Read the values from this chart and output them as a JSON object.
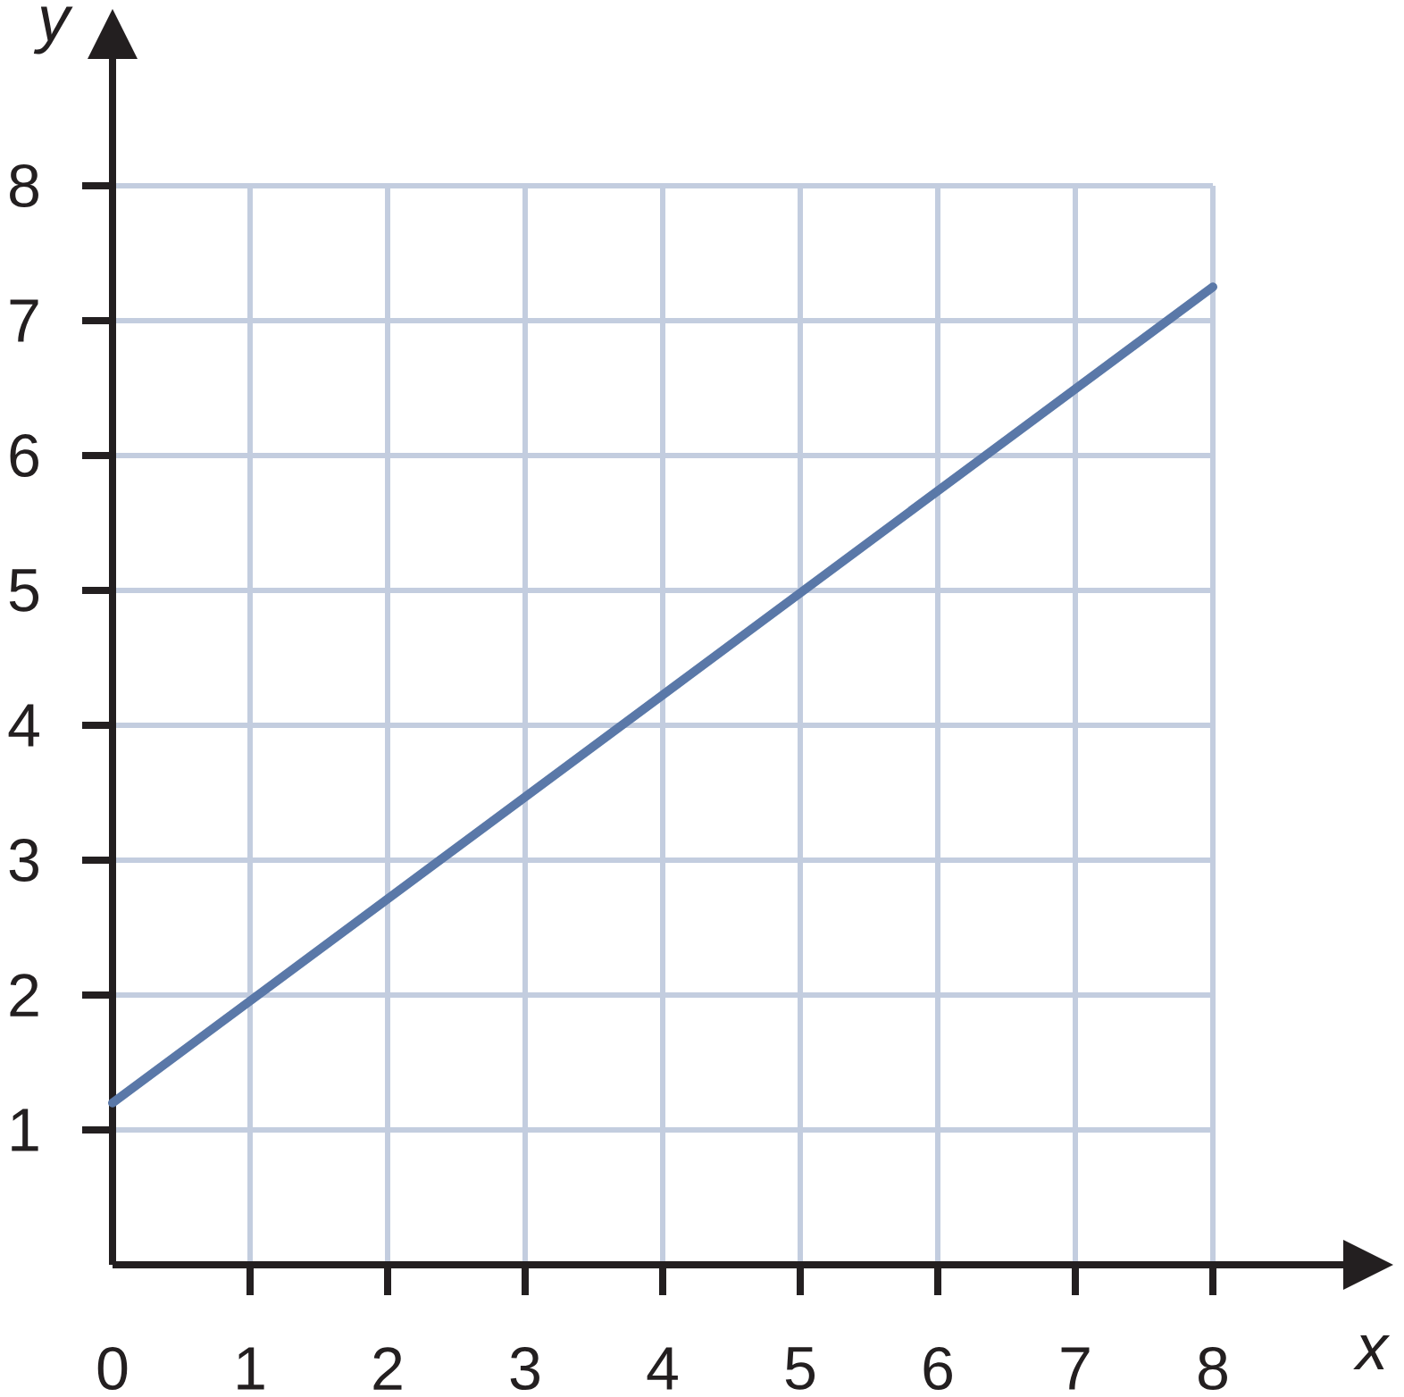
{
  "chart_data": {
    "type": "line",
    "xlabel": "x",
    "ylabel": "y",
    "x": [
      0,
      8
    ],
    "values": [
      1.2,
      7.25
    ],
    "color": "#5a78a8",
    "xlim": [
      0,
      8
    ],
    "ylim": [
      0,
      8
    ],
    "xticks": [
      0,
      1,
      2,
      3,
      4,
      5,
      6,
      7,
      8
    ],
    "yticks": [
      1,
      2,
      3,
      4,
      5,
      6,
      7,
      8
    ],
    "grid": true
  }
}
